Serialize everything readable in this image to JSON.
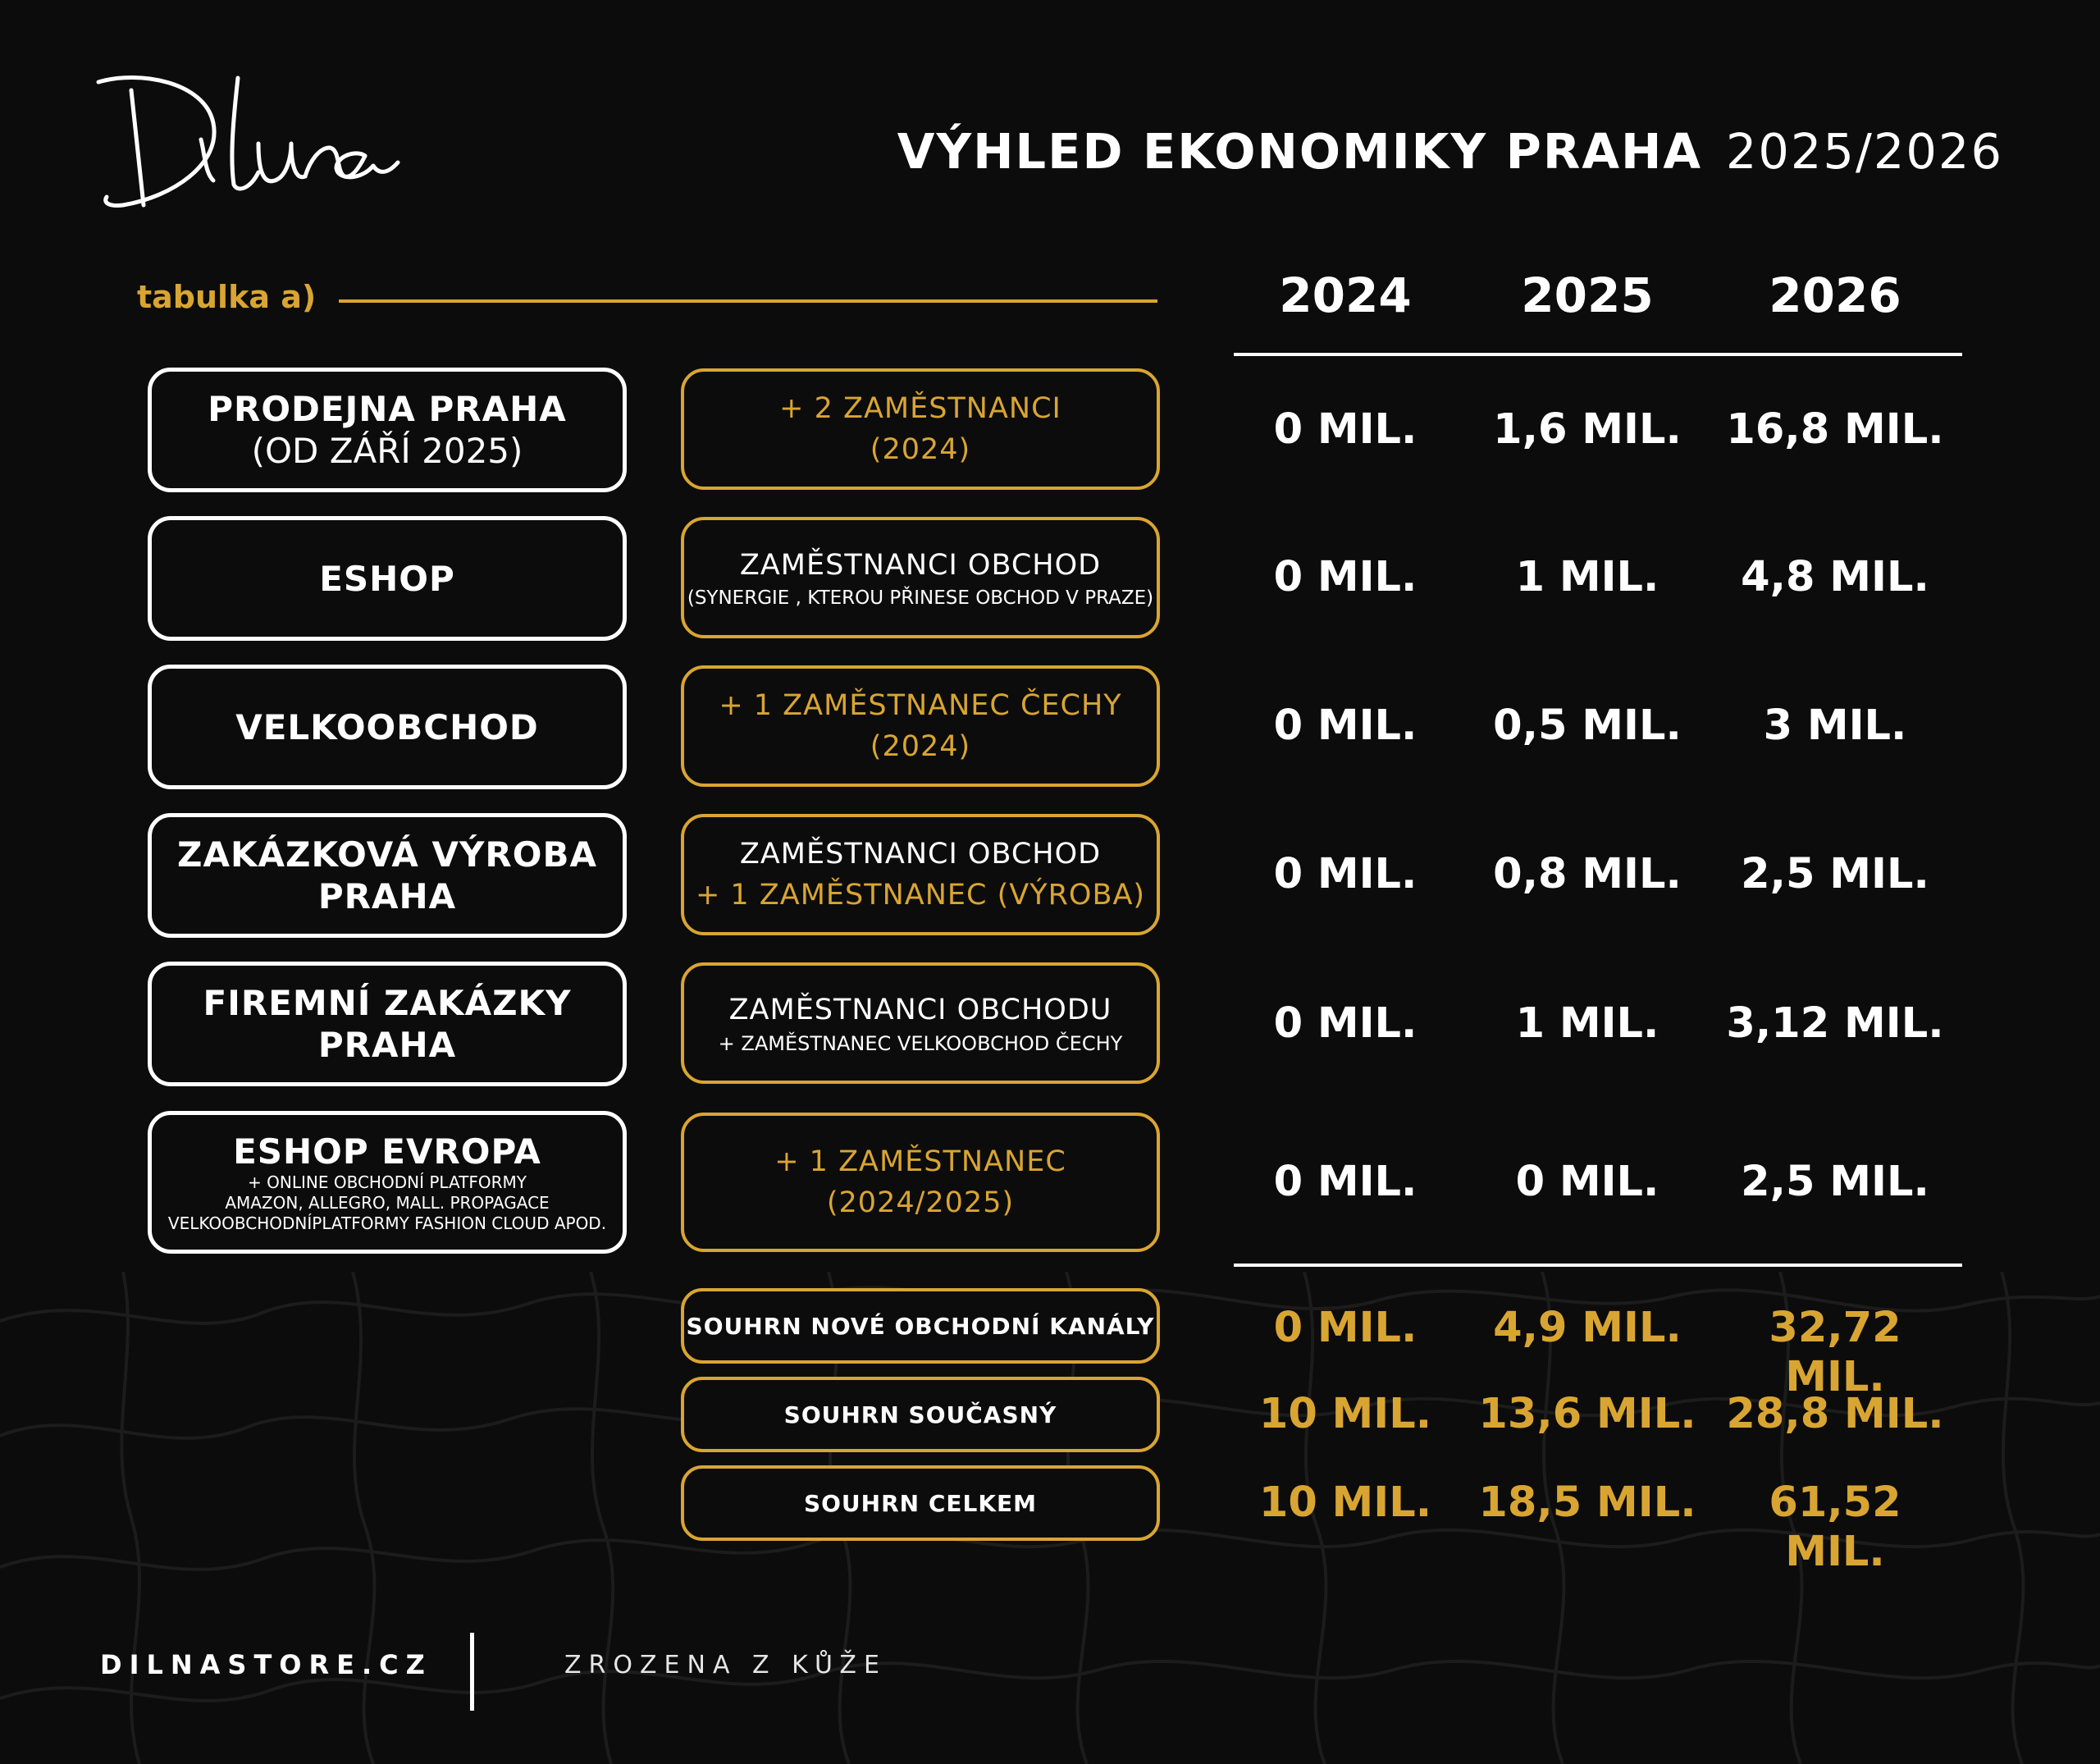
{
  "title": {
    "bold": "VÝHLED EKONOMIKY PRAHA",
    "years": "2025/2026"
  },
  "subtitle": "tabulka a)",
  "year_headers": [
    "2024",
    "2025",
    "2026"
  ],
  "rows": [
    {
      "label_main": "PRODEJNA PRAHA",
      "label_sub": "(OD ZÁŘÍ 2025)",
      "label_small": "",
      "note_line1": "+ 2 ZAMĚSTNANCI",
      "note_line2": "(2024)",
      "note_small": "",
      "v2024": "0 MIL.",
      "v2025": "1,6 MIL.",
      "v2026": "16,8 MIL."
    },
    {
      "label_main": "ESHOP",
      "label_sub": "",
      "label_small": "",
      "note_line1": "ZAMĚSTNANCI OBCHOD",
      "note_line2": "",
      "note_small": "(SYNERGIE , KTEROU PŘINESE OBCHOD V PRAZE)",
      "v2024": "0 MIL.",
      "v2025": "1 MIL.",
      "v2026": "4,8 MIL."
    },
    {
      "label_main": "VELKOOBCHOD",
      "label_sub": "",
      "label_small": "",
      "note_line1": "+ 1 ZAMĚSTNANEC ČECHY",
      "note_line2": "(2024)",
      "note_small": "",
      "v2024": "0 MIL.",
      "v2025": "0,5 MIL.",
      "v2026": "3 MIL."
    },
    {
      "label_main": "ZAKÁZKOVÁ VÝROBA",
      "label_main2": "PRAHA",
      "label_small": "",
      "note_line1": "ZAMĚSTNANCI OBCHOD",
      "note_line2": "+ 1 ZAMĚSTNANEC (VÝROBA)",
      "note_small": "",
      "v2024": "0 MIL.",
      "v2025": "0,8 MIL.",
      "v2026": "2,5 MIL."
    },
    {
      "label_main": "FIREMNÍ ZAKÁZKY",
      "label_main2": "PRAHA",
      "label_small": "",
      "note_line1": "ZAMĚSTNANCI OBCHODU",
      "note_line2": "",
      "note_small": "+ ZAMĚSTNANEC VELKOOBCHOD ČECHY",
      "v2024": "0 MIL.",
      "v2025": "1 MIL.",
      "v2026": "3,12 MIL."
    },
    {
      "label_main": "ESHOP EVROPA",
      "label_small_1": "+ ONLINE OBCHODNÍ PLATFORMY",
      "label_small_2": "AMAZON, ALLEGRO, MALL. PROPAGACE",
      "label_small_3": "VELKOOBCHODNÍPLATFORMY  FASHION CLOUD APOD.",
      "note_line1": "+ 1 ZAMĚSTNANEC",
      "note_line2": "(2024/2025)",
      "note_small": "",
      "v2024": "0 MIL.",
      "v2025": "0 MIL.",
      "v2026": "2,5 MIL."
    }
  ],
  "summary": [
    {
      "label": "SOUHRN NOVÉ OBCHODNÍ KANÁLY",
      "v2024": "0 MIL.",
      "v2025": "4,9 MIL.",
      "v2026": "32,72 MIL."
    },
    {
      "label": "SOUHRN SOUČASNÝ",
      "v2024": "10 MIL.",
      "v2025": "13,6 MIL.",
      "v2026": "28,8 MIL."
    },
    {
      "label": "SOUHRN CELKEM",
      "v2024": "10 MIL.",
      "v2025": "18,5 MIL.",
      "v2026": "61,52 MIL."
    }
  ],
  "footer": {
    "site": "DILNASTORE.CZ",
    "tagline": "ZROZENA Z KŮŽE"
  },
  "colors": {
    "background": "#0c0c0c",
    "accent_gold": "#d9a532",
    "text": "#ffffff"
  }
}
